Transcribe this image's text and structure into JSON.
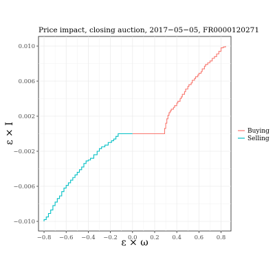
{
  "chart_data": {
    "type": "line",
    "title": "Price impact, closing auction, 2017−05−05, FR0000120271",
    "xlabel": "ε × ω",
    "ylabel": "ε × I",
    "xlim": [
      -0.85,
      0.89
    ],
    "ylim": [
      -0.0111,
      0.0111
    ],
    "x_ticks": [
      -0.8,
      -0.6,
      -0.4,
      -0.2,
      0.0,
      0.2,
      0.4,
      0.6,
      0.8
    ],
    "x_tick_labels": [
      "−0.8",
      "−0.6",
      "−0.4",
      "−0.2",
      "0.0",
      "0.2",
      "0.4",
      "0.6",
      "0.8"
    ],
    "y_ticks": [
      -0.01,
      -0.006,
      -0.002,
      0.002,
      0.006,
      0.01
    ],
    "y_tick_labels": [
      "−0.010",
      "−0.006",
      "−0.002",
      "0.002",
      "0.006",
      "0.010"
    ],
    "grid": true,
    "legend": "right",
    "series": [
      {
        "name": "Buying",
        "color": "#F8766D",
        "x": [
          0.0,
          0.28,
          0.29,
          0.3,
          0.31,
          0.32,
          0.33,
          0.34,
          0.35,
          0.37,
          0.38,
          0.4,
          0.41,
          0.43,
          0.44,
          0.45,
          0.47,
          0.48,
          0.5,
          0.51,
          0.53,
          0.54,
          0.56,
          0.57,
          0.59,
          0.6,
          0.62,
          0.63,
          0.65,
          0.66,
          0.68,
          0.7,
          0.72,
          0.74,
          0.76,
          0.78,
          0.8,
          0.82,
          0.84
        ],
        "y": [
          0.0,
          0.0,
          0.0006,
          0.0012,
          0.0017,
          0.0021,
          0.0024,
          0.0026,
          0.0028,
          0.003,
          0.0032,
          0.0035,
          0.0037,
          0.004,
          0.0042,
          0.0045,
          0.0048,
          0.0051,
          0.0054,
          0.0056,
          0.0058,
          0.0061,
          0.0063,
          0.0065,
          0.0067,
          0.0069,
          0.0071,
          0.0074,
          0.0077,
          0.0079,
          0.0081,
          0.0083,
          0.0086,
          0.0088,
          0.0091,
          0.0094,
          0.0098,
          0.0099,
          0.01
        ]
      },
      {
        "name": "Selling",
        "color": "#00BFC4",
        "x": [
          0.0,
          -0.05,
          -0.09,
          -0.13,
          -0.15,
          -0.17,
          -0.19,
          -0.22,
          -0.25,
          -0.28,
          -0.3,
          -0.32,
          -0.35,
          -0.38,
          -0.4,
          -0.42,
          -0.44,
          -0.46,
          -0.48,
          -0.5,
          -0.52,
          -0.54,
          -0.56,
          -0.58,
          -0.6,
          -0.62,
          -0.64,
          -0.66,
          -0.68,
          -0.7,
          -0.72,
          -0.74,
          -0.76,
          -0.78,
          -0.8
        ],
        "y": [
          0.0,
          0.0,
          0.0,
          -0.0003,
          -0.0006,
          -0.0008,
          -0.001,
          -0.0013,
          -0.0015,
          -0.0017,
          -0.002,
          -0.0024,
          -0.0028,
          -0.003,
          -0.0031,
          -0.0034,
          -0.0038,
          -0.0041,
          -0.0044,
          -0.0047,
          -0.005,
          -0.0053,
          -0.0056,
          -0.0059,
          -0.0062,
          -0.0066,
          -0.0071,
          -0.0074,
          -0.0078,
          -0.0082,
          -0.0087,
          -0.0091,
          -0.0095,
          -0.0098,
          -0.01
        ]
      }
    ]
  }
}
